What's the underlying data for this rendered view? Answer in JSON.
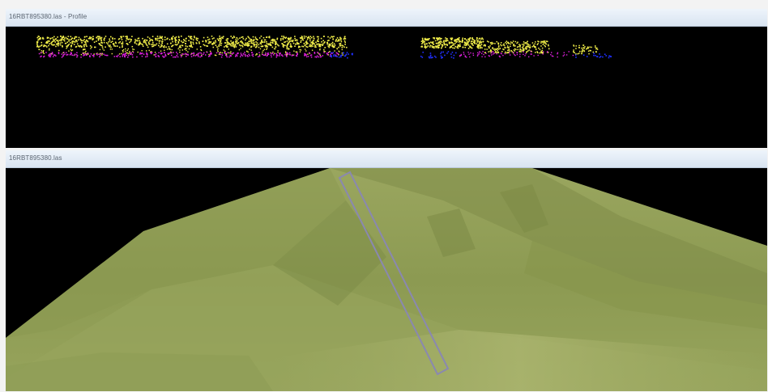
{
  "profile_window": {
    "title": "16RBT895380.las - Profile",
    "colors": {
      "vegetation": "#f2ef4a",
      "ground_low": "#e020e0",
      "ground_blue": "#2030ff",
      "background": "#000000"
    }
  },
  "scene_window": {
    "title": "16RBT895380.las",
    "colors": {
      "terrain": "#8e9c55",
      "terrain_light": "#a7b26a",
      "selection_box": "#8a88b0",
      "background": "#000000"
    }
  }
}
